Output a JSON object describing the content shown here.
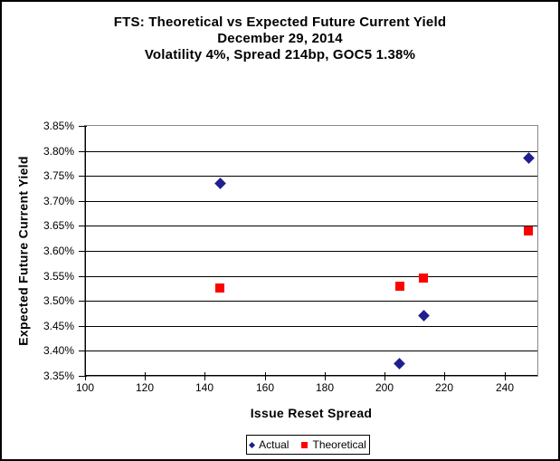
{
  "window": {
    "background": "#ffffff",
    "border_color": "#000000"
  },
  "title": {
    "line1": "FTS: Theoretical vs Expected Future Current Yield",
    "line2": "December 29, 2014",
    "line3": "Volatility 4%, Spread 214bp, GOC5 1.38%"
  },
  "chart_data": {
    "type": "scatter",
    "title": "FTS: Theoretical vs Expected Future Current Yield",
    "title_lines": [
      "FTS: Theoretical vs Expected Future Current Yield",
      "December 29, 2014",
      "Volatility 4%, Spread 214bp, GOC5 1.38%"
    ],
    "xlabel": "Issue Reset Spread",
    "ylabel": "Expected Future Current Yield",
    "xlim": [
      100,
      251
    ],
    "ylim": [
      3.35,
      3.85
    ],
    "xticks": [
      100,
      120,
      140,
      160,
      180,
      200,
      220,
      240
    ],
    "xtick_labels": [
      "100",
      "120",
      "140",
      "160",
      "180",
      "200",
      "220",
      "240"
    ],
    "yticks": [
      3.35,
      3.4,
      3.45,
      3.5,
      3.55,
      3.6,
      3.65,
      3.7,
      3.75,
      3.8,
      3.85
    ],
    "ytick_labels": [
      "3.35%",
      "3.40%",
      "3.45%",
      "3.50%",
      "3.55%",
      "3.60%",
      "3.65%",
      "3.70%",
      "3.75%",
      "3.80%",
      "3.85%"
    ],
    "grid": "horizontal",
    "legend_position": "bottom-center",
    "series": [
      {
        "name": "Actual",
        "marker": "diamond",
        "color": "#1f1f8f",
        "points": [
          [
            145,
            3.735
          ],
          [
            205,
            3.375
          ],
          [
            213,
            3.47
          ],
          [
            248,
            3.785
          ]
        ]
      },
      {
        "name": "Theoretical",
        "marker": "square",
        "color": "#ff0000",
        "points": [
          [
            145,
            3.525
          ],
          [
            205,
            3.53
          ],
          [
            213,
            3.545
          ],
          [
            248,
            3.64
          ]
        ]
      }
    ]
  }
}
